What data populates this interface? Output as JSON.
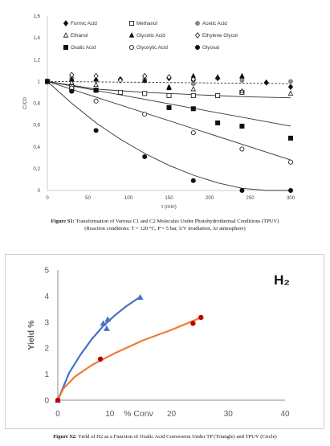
{
  "figure1": {
    "caption_label": "Figure S1:",
    "caption_text": "Transformation of Various C1 and C2 Molecules Under Photohydrothermal Conditions (TPUV)",
    "caption_line2": "(Reaction conditions: T = 120 °C, P = 5 bar, UV irradiation, Ar atmosphere)"
  },
  "figure2": {
    "caption_label": "Figure S2:",
    "caption_text": "Yield of H2 as a Function of Oxalic Acid Conversion Under TP (Triangle) and TPUV (Circle)"
  },
  "chart_data": [
    {
      "type": "scatter",
      "title": "",
      "xlabel": "t (min)",
      "ylabel": "C/C0",
      "xlim": [
        0,
        300
      ],
      "ylim": [
        0,
        1.6
      ],
      "xticks": [
        "0",
        "50",
        "100",
        "150",
        "200",
        "250",
        "300"
      ],
      "yticks": [
        "0",
        "0,2",
        "0,4",
        "0,6",
        "0,8",
        "1",
        "1,2",
        "1,4",
        "1,6"
      ],
      "grid": false,
      "legend_position": "top",
      "series": [
        {
          "name": "Formic Acid",
          "marker": "diamond-filled",
          "color": "#111111",
          "points": [
            [
              0,
              1
            ],
            [
              30,
              1.02
            ],
            [
              60,
              1.01
            ],
            [
              90,
              1.02
            ],
            [
              120,
              1.01
            ],
            [
              150,
              1.03
            ],
            [
              180,
              1.01
            ],
            [
              210,
              1.03
            ],
            [
              240,
              1.03
            ],
            [
              270,
              0.99
            ],
            [
              300,
              0.95
            ]
          ]
        },
        {
          "name": "Methanol",
          "marker": "square-open",
          "color": "#111111",
          "points": [
            [
              0,
              1
            ],
            [
              30,
              0.95
            ],
            [
              60,
              0.92
            ],
            [
              90,
              0.9
            ],
            [
              120,
              0.89
            ],
            [
              150,
              0.87
            ],
            [
              180,
              0.87
            ],
            [
              210,
              0.87
            ],
            [
              240,
              0.9
            ]
          ]
        },
        {
          "name": "Acetic Acid",
          "marker": "circle-filled-grey",
          "color": "#888888",
          "points": [
            [
              0,
              1
            ],
            [
              30,
              1.03
            ],
            [
              60,
              1.01
            ],
            [
              120,
              1.02
            ],
            [
              180,
              0.98
            ],
            [
              240,
              1.01
            ],
            [
              300,
              1.0
            ]
          ]
        },
        {
          "name": "Ethanol",
          "marker": "triangle-open",
          "color": "#111111",
          "points": [
            [
              0,
              1
            ],
            [
              30,
              0.99
            ],
            [
              60,
              0.97
            ],
            [
              150,
              0.95
            ],
            [
              180,
              0.93
            ],
            [
              240,
              0.91
            ],
            [
              300,
              0.89
            ]
          ]
        },
        {
          "name": "Glycolic Acid",
          "marker": "triangle-filled",
          "color": "#111111",
          "points": [
            [
              0,
              1
            ],
            [
              30,
              1.02
            ],
            [
              60,
              1.02
            ],
            [
              120,
              1.01
            ],
            [
              150,
              0.94
            ],
            [
              180,
              1.05
            ],
            [
              210,
              1.04
            ],
            [
              240,
              1.05
            ]
          ]
        },
        {
          "name": "Ethylene Glycol",
          "marker": "diamond-open",
          "color": "#111111",
          "points": [
            [
              0,
              1
            ],
            [
              30,
              1.06
            ],
            [
              60,
              1.05
            ],
            [
              90,
              1.01
            ],
            [
              120,
              1.05
            ],
            [
              150,
              1.04
            ],
            [
              180,
              1.02
            ]
          ]
        },
        {
          "name": "Oxalic Acid",
          "marker": "square-filled",
          "color": "#111111",
          "points": [
            [
              0,
              1
            ],
            [
              30,
              0.93
            ],
            [
              60,
              0.92
            ],
            [
              150,
              0.76
            ],
            [
              180,
              0.75
            ],
            [
              210,
              0.62
            ],
            [
              240,
              0.59
            ],
            [
              300,
              0.48
            ]
          ]
        },
        {
          "name": "Glyoxylic Acid",
          "marker": "circle-open",
          "color": "#111111",
          "points": [
            [
              0,
              1
            ],
            [
              30,
              0.94
            ],
            [
              60,
              0.82
            ],
            [
              120,
              0.7
            ],
            [
              180,
              0.53
            ],
            [
              240,
              0.38
            ],
            [
              300,
              0.26
            ]
          ]
        },
        {
          "name": "Glyoxal",
          "marker": "circle-filled",
          "color": "#111111",
          "points": [
            [
              0,
              1
            ],
            [
              30,
              0.91
            ],
            [
              60,
              0.55
            ],
            [
              120,
              0.31
            ],
            [
              180,
              0.09
            ],
            [
              240,
              0.0
            ],
            [
              300,
              0.0
            ]
          ]
        }
      ],
      "trend_lines": [
        {
          "style": "dashed",
          "points": [
            [
              0,
              1
            ],
            [
              300,
              0.98
            ]
          ]
        },
        {
          "style": "solid",
          "points": [
            [
              0,
              1
            ],
            [
              60,
              0.93
            ],
            [
              120,
              0.9
            ],
            [
              180,
              0.88
            ],
            [
              240,
              0.86
            ],
            [
              300,
              0.85
            ]
          ]
        },
        {
          "style": "solid",
          "points": [
            [
              0,
              1
            ],
            [
              300,
              0.59
            ]
          ]
        },
        {
          "style": "solid",
          "points": [
            [
              0,
              1
            ],
            [
              300,
              0.28
            ]
          ]
        },
        {
          "style": "solid",
          "points": [
            [
              0,
              1
            ],
            [
              30,
              0.8
            ],
            [
              60,
              0.62
            ],
            [
              90,
              0.47
            ],
            [
              120,
              0.34
            ],
            [
              150,
              0.23
            ],
            [
              180,
              0.14
            ],
            [
              210,
              0.07
            ],
            [
              240,
              0.02
            ],
            [
              270,
              0.0
            ],
            [
              300,
              0.0
            ]
          ]
        }
      ]
    },
    {
      "type": "scatter",
      "title": "H₂",
      "xlabel": "% Conv",
      "ylabel": "Yield %",
      "xlim": [
        0,
        40
      ],
      "ylim": [
        0,
        5
      ],
      "xticks": [
        "0",
        "10",
        "20",
        "30",
        "40"
      ],
      "yticks": [
        "0",
        "1",
        "2",
        "3",
        "4",
        "5"
      ],
      "grid": false,
      "series": [
        {
          "name": "TP",
          "marker": "triangle-filled",
          "color": "#4472C4",
          "points": [
            [
              0,
              0
            ],
            [
              8,
              2.95
            ],
            [
              8.8,
              3.1
            ],
            [
              8.6,
              2.75
            ],
            [
              14.5,
              3.95
            ]
          ],
          "fit": [
            [
              0,
              0
            ],
            [
              2,
              1.05
            ],
            [
              4,
              1.75
            ],
            [
              6,
              2.35
            ],
            [
              8,
              2.85
            ],
            [
              10,
              3.25
            ],
            [
              12,
              3.6
            ],
            [
              14.5,
              3.97
            ]
          ]
        },
        {
          "name": "TPUV",
          "marker": "circle-filled",
          "color": "#C00000",
          "points": [
            [
              0,
              0
            ],
            [
              7.5,
              1.58
            ],
            [
              23.8,
              2.95
            ],
            [
              25.2,
              3.18
            ]
          ],
          "fit": [
            [
              0,
              0
            ],
            [
              1,
              0.45
            ],
            [
              3,
              0.9
            ],
            [
              6,
              1.35
            ],
            [
              10,
              1.8
            ],
            [
              15,
              2.3
            ],
            [
              20,
              2.7
            ],
            [
              25.5,
              3.2
            ]
          ]
        }
      ]
    }
  ]
}
